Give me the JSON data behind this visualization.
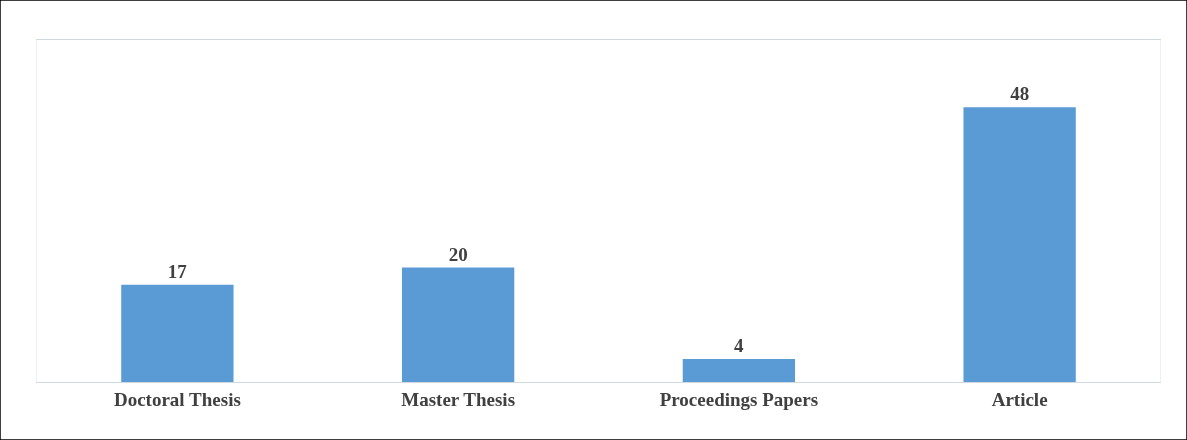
{
  "chart_data": {
    "type": "bar",
    "categories": [
      "Doctoral Thesis",
      "Master Thesis",
      "Proceedings Papers",
      "Article"
    ],
    "values": [
      17,
      20,
      4,
      48
    ],
    "color": "#5b9bd5",
    "data_labels": true,
    "tick_labels": "x"
  }
}
